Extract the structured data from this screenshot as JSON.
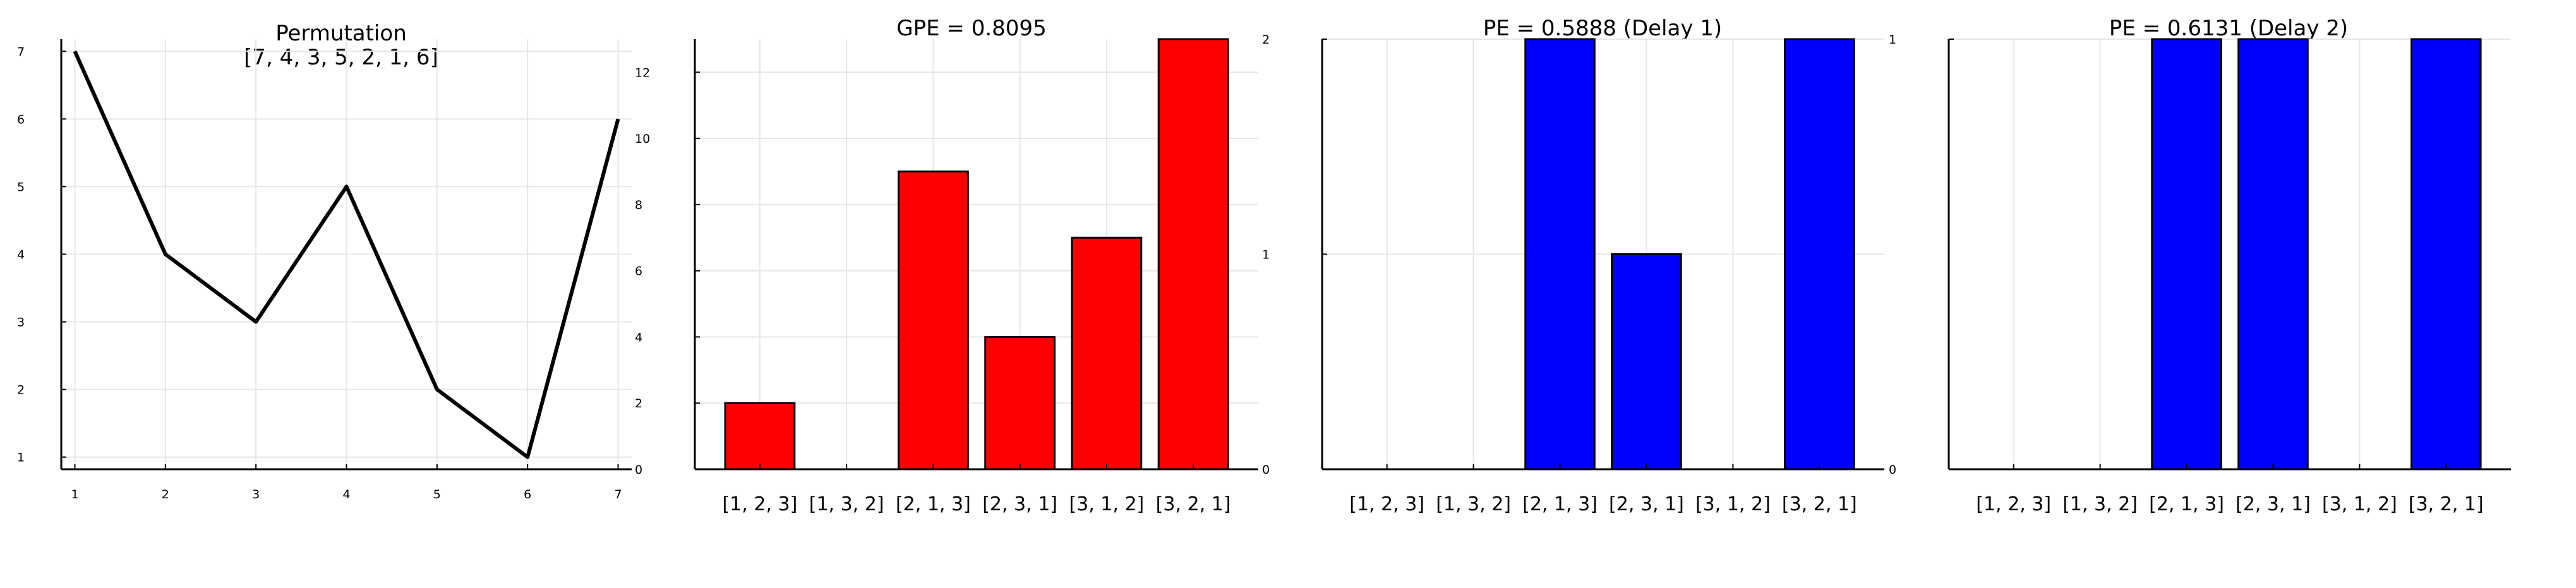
{
  "chart_data": [
    {
      "type": "line",
      "title": "Permutation",
      "subtitle": "[7, 4, 3, 5, 2, 1, 6]",
      "x": [
        1,
        2,
        3,
        4,
        5,
        6,
        7
      ],
      "y": [
        7,
        4,
        3,
        5,
        2,
        1,
        6
      ],
      "xticks": [
        1,
        2,
        3,
        4,
        5,
        6,
        7
      ],
      "yticks": [
        1,
        2,
        3,
        4,
        5,
        6,
        7
      ],
      "xlim": [
        0.85,
        7.15
      ],
      "ylim": [
        0.82,
        7.18
      ],
      "grid": true,
      "color": "#000000"
    },
    {
      "type": "bar",
      "title": "GPE = 0.8095",
      "categories": [
        "[1, 2, 3]",
        "[1, 3, 2]",
        "[2, 1, 3]",
        "[2, 3, 1]",
        "[3, 1, 2]",
        "[3, 2, 1]"
      ],
      "values": [
        2,
        0,
        9,
        4,
        7,
        13
      ],
      "yticks": [
        0,
        2,
        4,
        6,
        8,
        10,
        12
      ],
      "ylim": [
        0,
        13
      ],
      "grid": true,
      "color": "#ff0000"
    },
    {
      "type": "bar",
      "title": "PE = 0.5888 (Delay 1)",
      "categories": [
        "[1, 2, 3]",
        "[1, 3, 2]",
        "[2, 1, 3]",
        "[2, 3, 1]",
        "[3, 1, 2]",
        "[3, 2, 1]"
      ],
      "values": [
        0,
        0,
        2,
        1,
        0,
        2
      ],
      "yticks": [
        0,
        1,
        2
      ],
      "ylim": [
        0,
        2
      ],
      "grid": true,
      "color": "#0000ff"
    },
    {
      "type": "bar",
      "title": "PE = 0.6131 (Delay 2)",
      "categories": [
        "[1, 2, 3]",
        "[1, 3, 2]",
        "[2, 1, 3]",
        "[2, 3, 1]",
        "[3, 1, 2]",
        "[3, 2, 1]"
      ],
      "values": [
        0,
        0,
        1,
        1,
        0,
        1
      ],
      "yticks": [
        0,
        1
      ],
      "ylim": [
        0,
        1
      ],
      "grid": true,
      "color": "#0000ff"
    }
  ]
}
